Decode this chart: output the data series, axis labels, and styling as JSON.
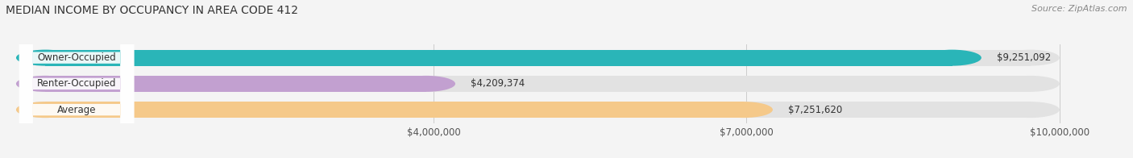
{
  "title": "MEDIAN INCOME BY OCCUPANCY IN AREA CODE 412",
  "source": "Source: ZipAtlas.com",
  "categories": [
    "Owner-Occupied",
    "Renter-Occupied",
    "Average"
  ],
  "values": [
    9251092,
    4209374,
    7251620
  ],
  "bar_colors": [
    "#2ab5b8",
    "#c2a0d0",
    "#f5c98a"
  ],
  "value_labels": [
    "$9,251,092",
    "$4,209,374",
    "$7,251,620"
  ],
  "xmax": 10000000,
  "xticks": [
    4000000,
    7000000,
    10000000
  ],
  "xtick_labels": [
    "$4,000,000",
    "$7,000,000",
    "$10,000,000"
  ],
  "bar_height": 0.62,
  "background_color": "#f4f4f4",
  "bar_bg_color": "#e2e2e2",
  "title_fontsize": 10,
  "source_fontsize": 8,
  "label_fontsize": 8.5,
  "value_fontsize": 8.5
}
